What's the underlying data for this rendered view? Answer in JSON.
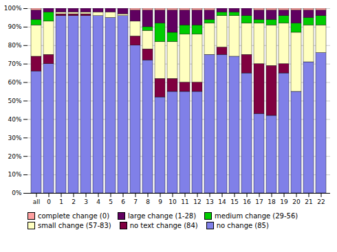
{
  "chart_data": {
    "type": "bar",
    "stacked": true,
    "categories": [
      "all",
      "0",
      "1",
      "2",
      "3",
      "4",
      "5",
      "6",
      "7",
      "8",
      "9",
      "10",
      "11",
      "12",
      "13",
      "14",
      "15",
      "16",
      "17",
      "18",
      "19",
      "20",
      "21",
      "22"
    ],
    "series": [
      {
        "name": "no change (85)",
        "color": "#8080e8",
        "values": [
          66,
          70,
          96,
          96,
          96,
          96,
          95,
          96,
          80,
          72,
          52,
          55,
          55,
          55,
          75,
          75,
          74,
          65,
          43,
          42,
          65,
          55,
          71,
          76
        ]
      },
      {
        "name": "no text change (84)",
        "color": "#800040",
        "values": [
          8,
          5,
          1,
          1,
          1,
          0,
          0,
          0,
          5,
          6,
          10,
          7,
          5,
          5,
          0,
          4,
          0,
          10,
          27,
          27,
          5,
          0,
          0,
          0
        ]
      },
      {
        "name": "small change (57-83)",
        "color": "#ffffc0",
        "values": [
          17,
          18,
          1,
          1,
          1,
          2,
          3,
          1,
          8,
          10,
          20,
          20,
          26,
          26,
          17,
          17,
          22,
          17,
          22,
          22,
          22,
          32,
          20,
          15
        ]
      },
      {
        "name": "medium change (29-56)",
        "color": "#00cc00",
        "values": [
          3,
          5,
          0,
          0,
          0,
          0,
          0,
          0,
          0,
          2,
          10,
          5,
          5,
          5,
          2,
          2,
          2,
          4,
          2,
          3,
          4,
          5,
          4,
          5
        ]
      },
      {
        "name": "large change (1-28)",
        "color": "#600060",
        "values": [
          5,
          2,
          2,
          2,
          2,
          2,
          2,
          3,
          6,
          9,
          7,
          12,
          8,
          8,
          5,
          2,
          2,
          4,
          5,
          5,
          3,
          7,
          4,
          3
        ]
      },
      {
        "name": "complete change (0)",
        "color": "#ffa0a0",
        "values": [
          1,
          0,
          0,
          0,
          0,
          0,
          0,
          0,
          1,
          1,
          1,
          1,
          1,
          1,
          1,
          0,
          0,
          0,
          1,
          1,
          1,
          1,
          1,
          1
        ]
      }
    ],
    "ylim": [
      0,
      100
    ],
    "yticks": [
      {
        "value": 0,
        "label": "0%"
      },
      {
        "value": 10,
        "label": "10%"
      },
      {
        "value": 20,
        "label": "20%"
      },
      {
        "value": 30,
        "label": "30%"
      },
      {
        "value": 40,
        "label": "40%"
      },
      {
        "value": 50,
        "label": "50%"
      },
      {
        "value": 60,
        "label": "60%"
      },
      {
        "value": 70,
        "label": "70%"
      },
      {
        "value": 80,
        "label": "80%"
      },
      {
        "value": 90,
        "label": "90%"
      },
      {
        "value": 100,
        "label": "100%"
      }
    ],
    "grid": true,
    "legend": "lower left"
  }
}
